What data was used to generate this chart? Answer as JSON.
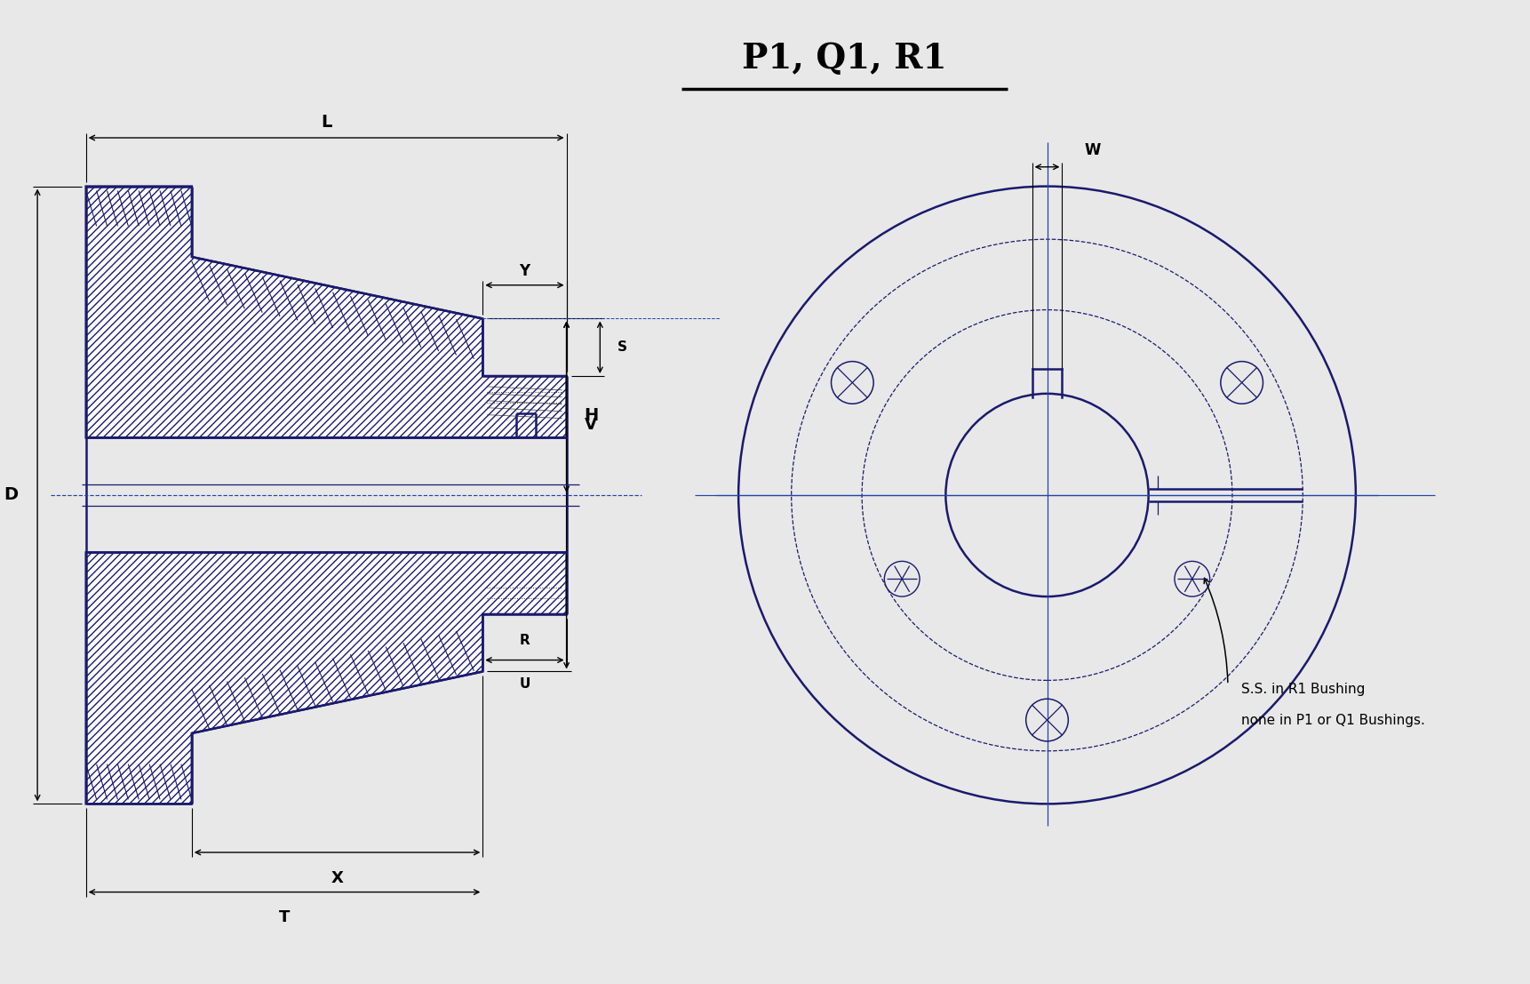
{
  "title": "P1, Q1, R1",
  "background_color": "#e8e8e8",
  "line_color": "#1a1a6e",
  "text_color": "#000000",
  "note_text_line1": "S.S. in R1 Bushing",
  "note_text_line2": "none in P1 or Q1 Bushings.",
  "dimension_labels": [
    "L",
    "Y",
    "D",
    "H",
    "V",
    "W",
    "X",
    "R",
    "T",
    "U",
    "S"
  ]
}
